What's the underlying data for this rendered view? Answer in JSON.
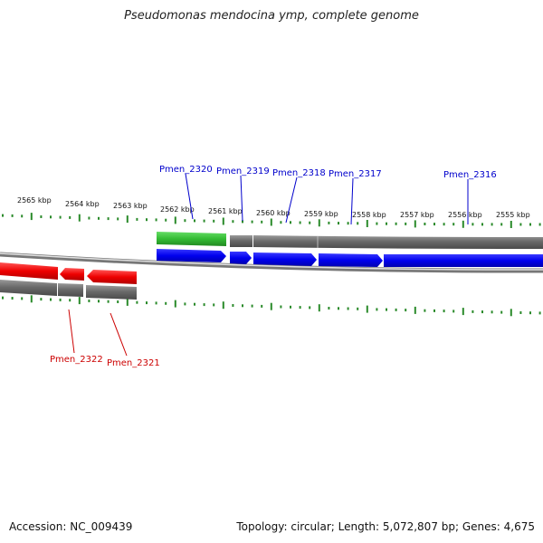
{
  "title": "Pseudomonas mendocina ymp, complete genome",
  "footer": {
    "accession": "Accession: NC_009439",
    "summary": "Topology: circular; Length: 5,072,807 bp; Genes: 4,675"
  },
  "colors": {
    "forward_cds": "#0000ff",
    "reverse_cds": "#ff0000",
    "rna_gene": "#33bb33",
    "gene_region": "#666666",
    "tick": "#2a8a2a",
    "forward_label": "#0000cc",
    "reverse_label": "#cc0000"
  },
  "scale_labels": [
    "2565 kbp",
    "2564 kbp",
    "2563 kbp",
    "2562 kbp",
    "2561 kbp",
    "2560 kbp",
    "2559 kbp",
    "2558 kbp",
    "2557 kbp",
    "2556 kbp",
    "2555 kbp"
  ],
  "genes_forward": [
    {
      "label": "Pmen_2320"
    },
    {
      "label": "Pmen_2319"
    },
    {
      "label": "Pmen_2318"
    },
    {
      "label": "Pmen_2317"
    },
    {
      "label": "Pmen_2316"
    }
  ],
  "genes_reverse": [
    {
      "label": "Pmen_2322"
    },
    {
      "label": "Pmen_2321"
    }
  ]
}
